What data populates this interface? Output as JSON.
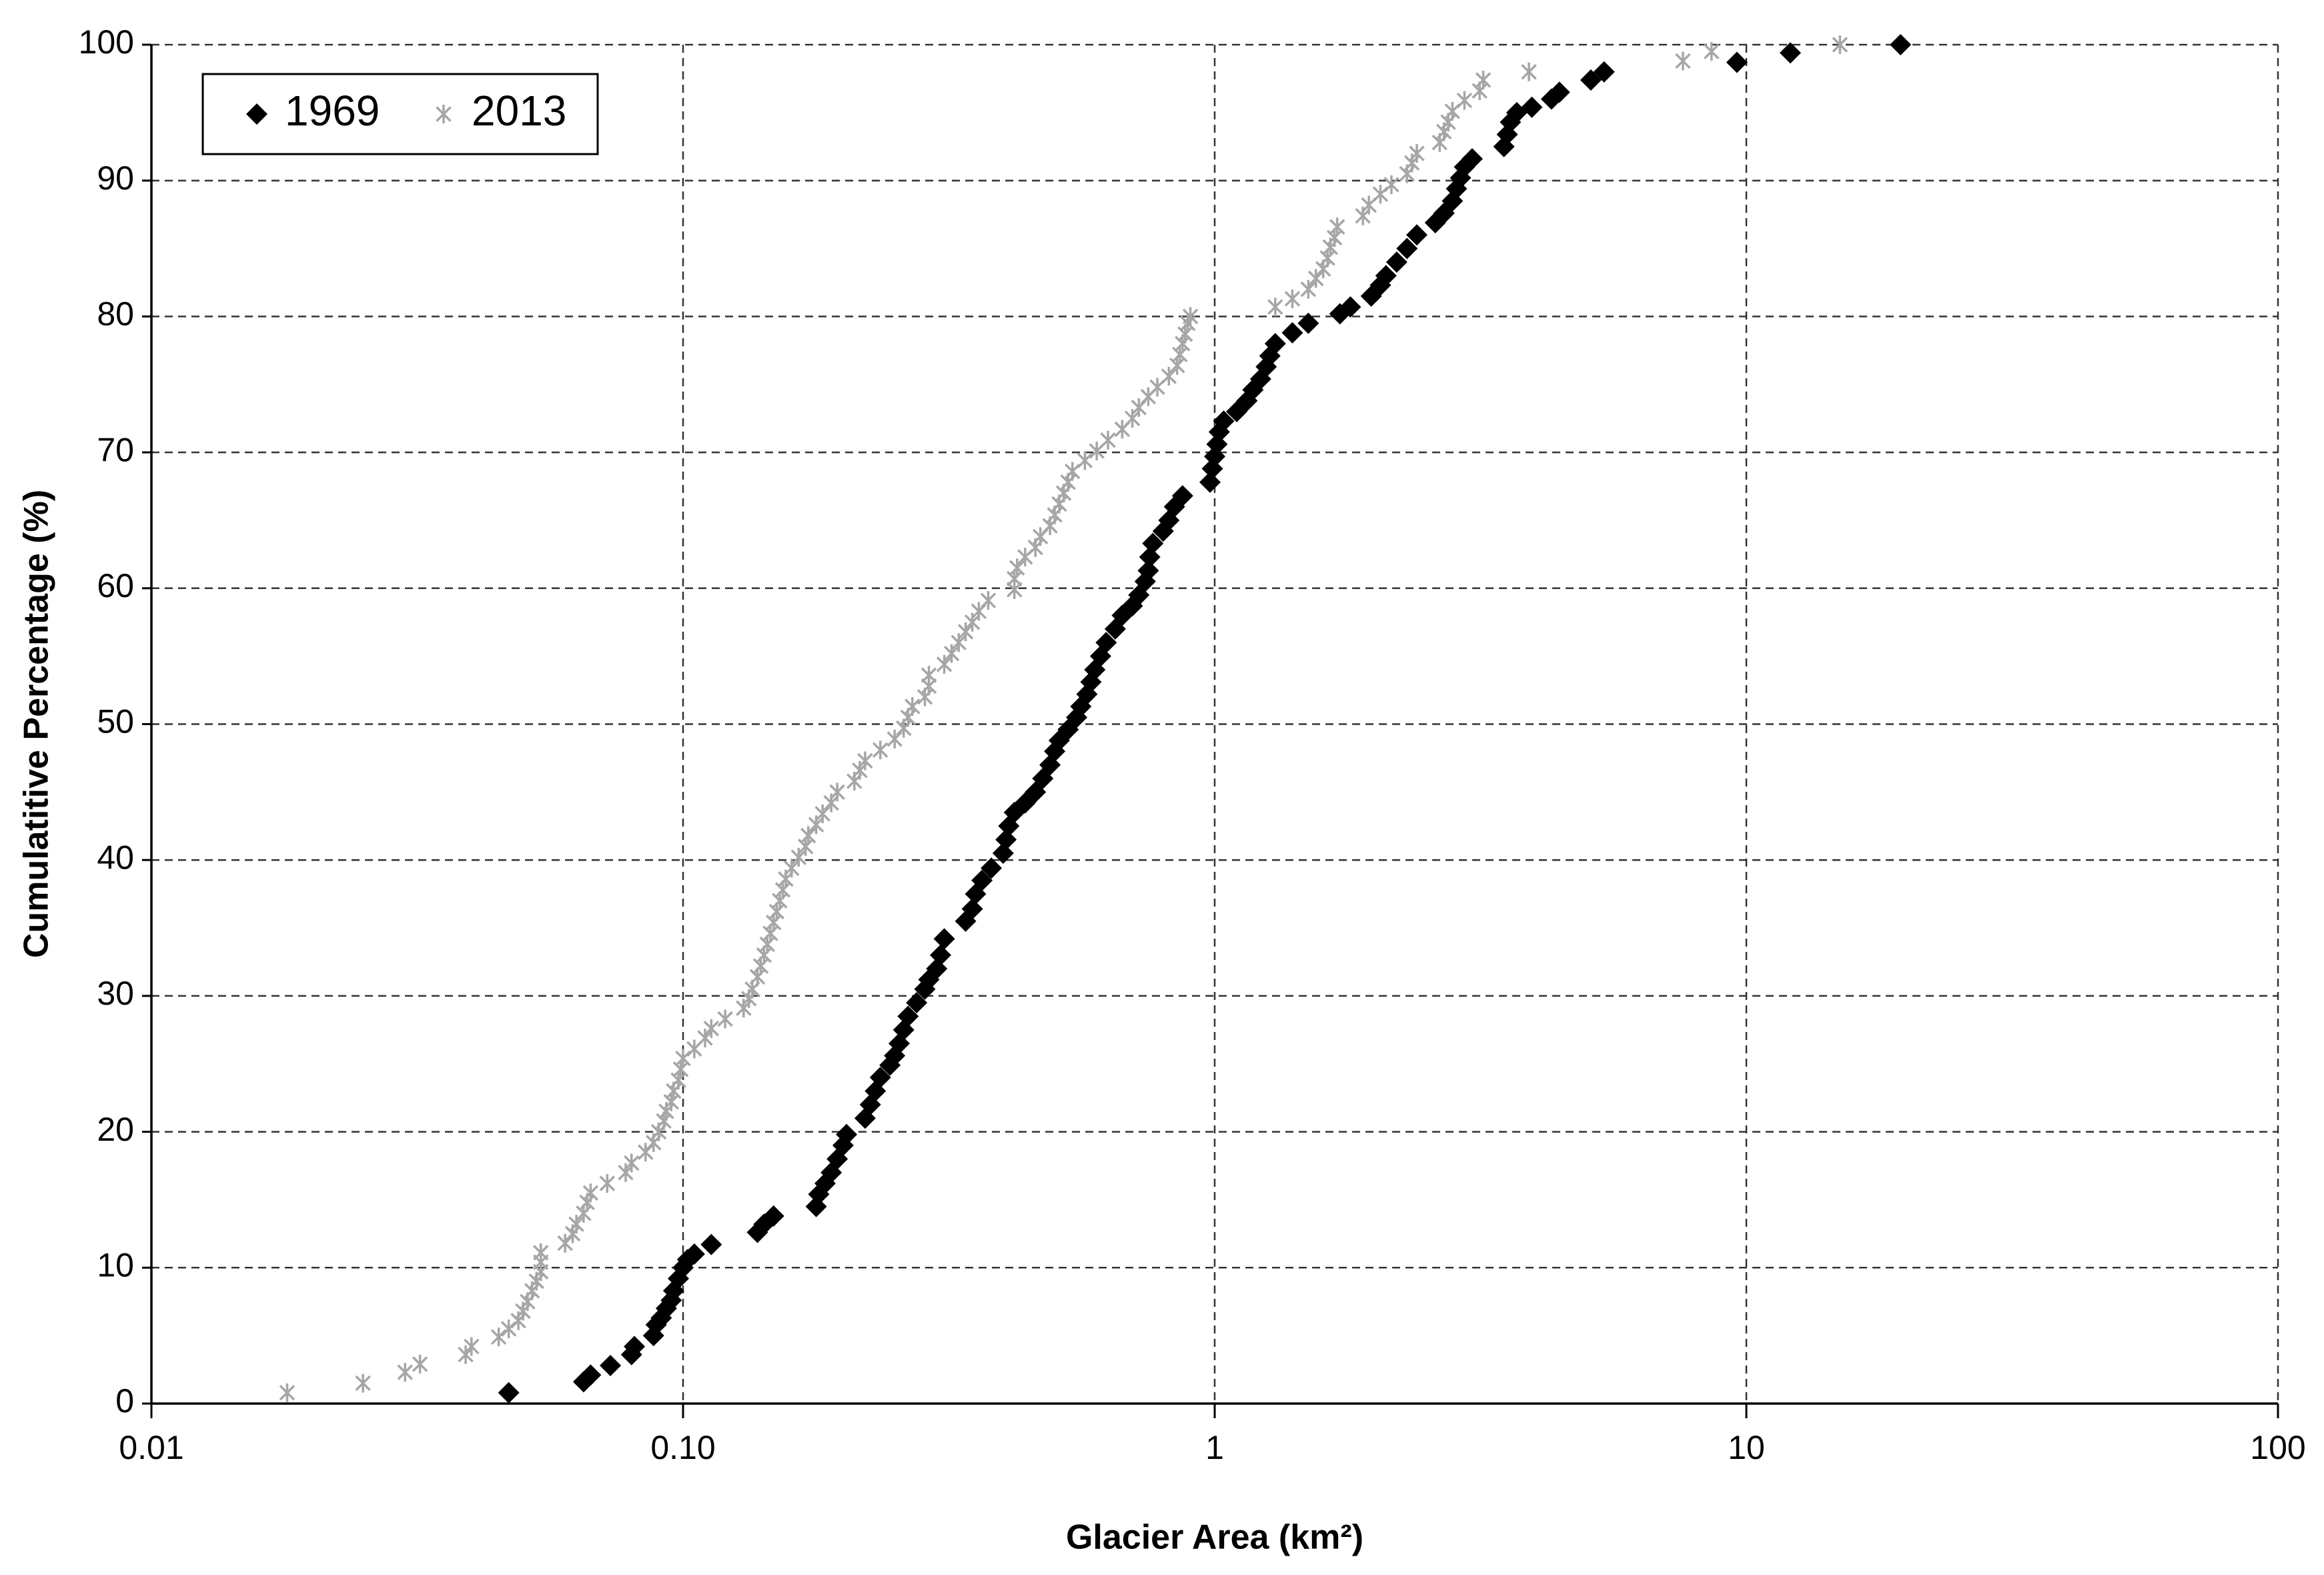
{
  "chart_data": {
    "type": "scatter",
    "xlabel": "Glacier Area (km²)",
    "ylabel": "Cumulatitive  Percentage (%)",
    "xscale": "log",
    "xlim": [
      0.01,
      100
    ],
    "xticks": [
      0.01,
      {
        "value": 0.1,
        "label": "0.10"
      },
      1,
      10,
      100
    ],
    "ylim": [
      0,
      100
    ],
    "yticks": [
      0,
      10,
      20,
      30,
      40,
      50,
      60,
      70,
      80,
      90,
      100
    ],
    "grid": true,
    "legend": "upper left",
    "series": [
      {
        "name": "1969",
        "color": "#000000",
        "marker": "diamond",
        "x": [
          0.047,
          0.065,
          0.067,
          0.073,
          0.08,
          0.081,
          0.088,
          0.089,
          0.091,
          0.093,
          0.095,
          0.096,
          0.098,
          0.1,
          0.102,
          0.105,
          0.113,
          0.138,
          0.142,
          0.148,
          0.178,
          0.18,
          0.185,
          0.19,
          0.195,
          0.2,
          0.203,
          0.22,
          0.225,
          0.23,
          0.235,
          0.245,
          0.25,
          0.255,
          0.26,
          0.265,
          0.275,
          0.285,
          0.29,
          0.3,
          0.305,
          0.31,
          0.34,
          0.35,
          0.355,
          0.365,
          0.38,
          0.4,
          0.405,
          0.41,
          0.42,
          0.44,
          0.46,
          0.475,
          0.49,
          0.5,
          0.51,
          0.53,
          0.55,
          0.56,
          0.575,
          0.585,
          0.595,
          0.61,
          0.625,
          0.65,
          0.67,
          0.7,
          0.72,
          0.74,
          0.75,
          0.755,
          0.765,
          0.8,
          0.82,
          0.84,
          0.87,
          0.98,
          0.99,
          1.0,
          1.01,
          1.02,
          1.04,
          1.1,
          1.15,
          1.18,
          1.22,
          1.25,
          1.27,
          1.3,
          1.4,
          1.5,
          1.72,
          1.8,
          1.97,
          2.05,
          2.1,
          2.2,
          2.3,
          2.4,
          2.6,
          2.7,
          2.8,
          2.85,
          2.9,
          2.95,
          3.05,
          3.5,
          3.55,
          3.6,
          3.7,
          3.95,
          4.3,
          4.45,
          5.1,
          5.4,
          9.6,
          12.1,
          19.5
        ],
        "values": [
          0.8,
          1.6,
          2.1,
          2.8,
          3.6,
          4.2,
          5.0,
          5.8,
          6.3,
          7.0,
          7.6,
          8.3,
          9.2,
          10.0,
          10.6,
          11.0,
          11.7,
          12.6,
          13.2,
          13.8,
          14.5,
          15.4,
          16.2,
          17.0,
          18.0,
          19.0,
          19.8,
          21.0,
          22.0,
          23.0,
          24.0,
          24.9,
          25.6,
          26.5,
          27.5,
          28.5,
          29.5,
          30.5,
          31.2,
          32.0,
          33.0,
          34.2,
          35.5,
          36.4,
          37.5,
          38.5,
          39.4,
          40.5,
          41.5,
          42.5,
          43.5,
          44.2,
          45.0,
          46.0,
          47.0,
          48.0,
          48.8,
          49.6,
          50.5,
          51.3,
          52.2,
          53.1,
          54.0,
          55.0,
          56.0,
          57.0,
          58.0,
          58.7,
          59.5,
          60.5,
          61.3,
          62.3,
          63.3,
          64.2,
          65.0,
          66.0,
          66.8,
          67.8,
          68.8,
          69.7,
          70.6,
          71.5,
          72.3,
          73.0,
          73.8,
          74.6,
          75.4,
          76.3,
          77.1,
          78.0,
          78.8,
          79.5,
          80.2,
          80.7,
          81.5,
          82.3,
          83.0,
          84.0,
          85.0,
          86.0,
          86.9,
          87.6,
          88.5,
          89.4,
          90.2,
          91.0,
          91.6,
          92.5,
          93.4,
          94.3,
          95.0,
          95.4,
          96.0,
          96.5,
          97.4,
          98.0,
          98.7,
          99.4,
          100
        ]
      },
      {
        "name": "2013",
        "color": "#a6a6a6",
        "marker": "asterisk",
        "x": [
          0.018,
          0.025,
          0.03,
          0.032,
          0.039,
          0.04,
          0.045,
          0.047,
          0.049,
          0.05,
          0.051,
          0.052,
          0.053,
          0.054,
          0.054,
          0.054,
          0.06,
          0.062,
          0.063,
          0.065,
          0.066,
          0.067,
          0.072,
          0.078,
          0.08,
          0.085,
          0.088,
          0.09,
          0.092,
          0.093,
          0.095,
          0.096,
          0.098,
          0.099,
          0.1,
          0.105,
          0.11,
          0.113,
          0.12,
          0.13,
          0.133,
          0.135,
          0.138,
          0.14,
          0.142,
          0.144,
          0.146,
          0.148,
          0.15,
          0.152,
          0.154,
          0.156,
          0.16,
          0.165,
          0.17,
          0.172,
          0.178,
          0.183,
          0.19,
          0.195,
          0.21,
          0.215,
          0.22,
          0.235,
          0.25,
          0.26,
          0.265,
          0.27,
          0.285,
          0.29,
          0.29,
          0.31,
          0.32,
          0.33,
          0.34,
          0.35,
          0.36,
          0.375,
          0.42,
          0.42,
          0.425,
          0.44,
          0.46,
          0.47,
          0.49,
          0.5,
          0.51,
          0.52,
          0.53,
          0.54,
          0.57,
          0.6,
          0.63,
          0.67,
          0.7,
          0.72,
          0.75,
          0.78,
          0.82,
          0.85,
          0.86,
          0.87,
          0.88,
          0.89,
          0.9,
          1.3,
          1.4,
          1.5,
          1.55,
          1.6,
          1.63,
          1.65,
          1.68,
          1.7,
          1.9,
          1.95,
          2.05,
          2.15,
          2.3,
          2.35,
          2.4,
          2.65,
          2.7,
          2.75,
          2.8,
          2.95,
          3.15,
          3.2,
          3.9,
          7.6,
          8.6,
          15.0
        ],
        "values": [
          0.8,
          1.5,
          2.3,
          2.9,
          3.6,
          4.2,
          4.9,
          5.5,
          6.1,
          6.8,
          7.5,
          8.3,
          9.0,
          9.7,
          10.4,
          11.1,
          11.8,
          12.5,
          13.2,
          14.0,
          14.8,
          15.5,
          16.2,
          17.0,
          17.7,
          18.5,
          19.2,
          20.0,
          20.8,
          21.5,
          22.2,
          23.0,
          23.8,
          24.6,
          25.4,
          26.1,
          26.9,
          27.6,
          28.3,
          29.1,
          29.8,
          30.5,
          31.4,
          32.2,
          33.0,
          33.8,
          34.6,
          35.4,
          36.2,
          37.0,
          37.8,
          38.6,
          39.4,
          40.2,
          41.0,
          41.8,
          42.6,
          43.4,
          44.2,
          45.0,
          45.8,
          46.6,
          47.3,
          48.1,
          48.9,
          49.7,
          50.5,
          51.3,
          52.0,
          52.8,
          53.6,
          54.4,
          55.2,
          56.0,
          56.8,
          57.5,
          58.3,
          59.1,
          59.9,
          60.7,
          61.5,
          62.3,
          63.0,
          63.8,
          64.6,
          65.4,
          66.2,
          67.0,
          67.8,
          68.6,
          69.4,
          70.1,
          70.9,
          71.7,
          72.5,
          73.3,
          74.1,
          74.8,
          75.6,
          76.4,
          77.2,
          78.0,
          78.7,
          79.5,
          80.0,
          80.7,
          81.3,
          82.0,
          82.8,
          83.5,
          84.3,
          85.1,
          85.8,
          86.6,
          87.4,
          88.2,
          89.0,
          89.7,
          90.5,
          91.3,
          92.0,
          92.8,
          93.6,
          94.3,
          95.1,
          95.9,
          96.6,
          97.4,
          98.0,
          98.8,
          99.5,
          100
        ]
      }
    ]
  }
}
